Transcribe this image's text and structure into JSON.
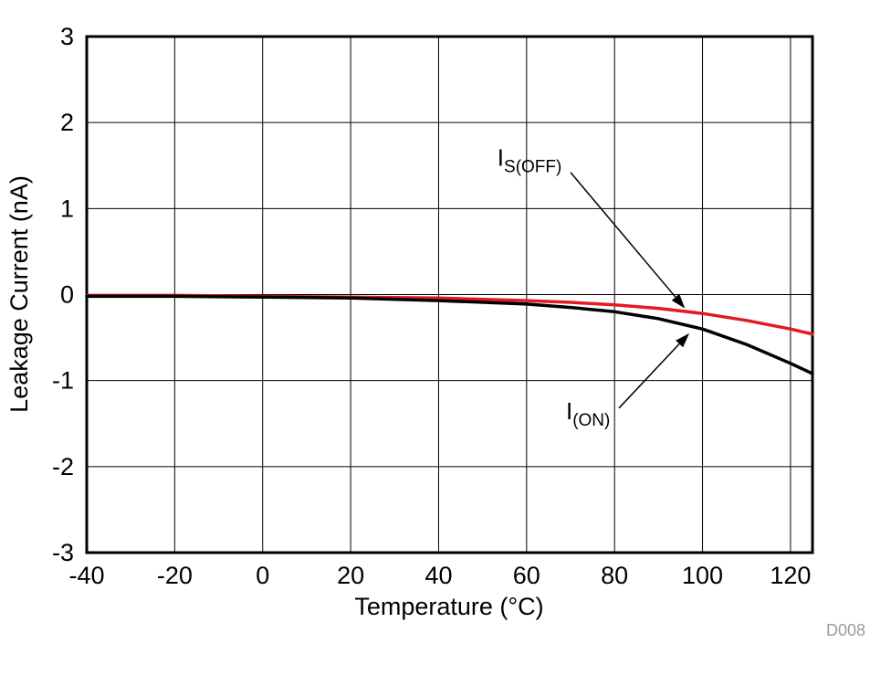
{
  "chart_data": {
    "type": "line",
    "title": "",
    "xlabel": "Temperature (°C)",
    "ylabel": "Leakage Current (nA)",
    "figure_id": "D008",
    "xlim": [
      -40,
      125
    ],
    "ylim": [
      -3,
      3
    ],
    "x_ticks": [
      -40,
      -20,
      0,
      20,
      40,
      60,
      80,
      100,
      120
    ],
    "y_ticks": [
      -3,
      -2,
      -1,
      0,
      1,
      2,
      3
    ],
    "grid": true,
    "legend_position": "annotated-on-plot",
    "x": [
      -40,
      -20,
      0,
      20,
      40,
      60,
      70,
      80,
      90,
      100,
      110,
      120,
      125
    ],
    "series": [
      {
        "name": "IS(OFF)",
        "color": "#e11b22",
        "values": [
          -0.01,
          -0.01,
          -0.02,
          -0.03,
          -0.04,
          -0.07,
          -0.09,
          -0.12,
          -0.16,
          -0.22,
          -0.3,
          -0.4,
          -0.46
        ]
      },
      {
        "name": "I(ON)",
        "color": "#000000",
        "values": [
          -0.02,
          -0.02,
          -0.03,
          -0.04,
          -0.07,
          -0.11,
          -0.15,
          -0.2,
          -0.28,
          -0.4,
          -0.58,
          -0.8,
          -0.92
        ]
      }
    ],
    "annotations": [
      {
        "id": "is-off",
        "text_main": "I",
        "text_sub": "S(OFF)",
        "label_x": 68,
        "label_y": 1.5,
        "line_x1": 70,
        "line_y1": 1.42,
        "arrow_x": 96,
        "arrow_y": -0.16
      },
      {
        "id": "i-on",
        "text_main": "I",
        "text_sub": "(ON)",
        "label_x": 79,
        "label_y": -1.45,
        "line_x1": 81,
        "line_y1": -1.32,
        "arrow_x": 97,
        "arrow_y": -0.45
      }
    ]
  }
}
